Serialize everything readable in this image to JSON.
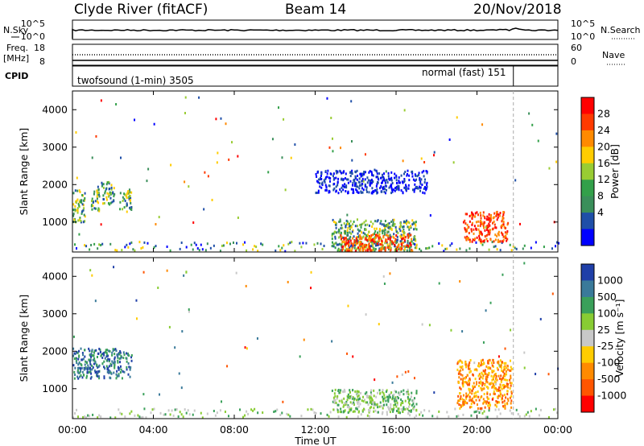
{
  "header": {
    "title": "Clyde River (fitACF)",
    "beam": "Beam 14",
    "date": "20/Nov/2018"
  },
  "strip": {
    "left_top_label": "N.Sky",
    "left_top_ticks": [
      "10^5",
      "10^0"
    ],
    "right_top_label": "N.Search",
    "right_top_ticks": [
      "10^5",
      "10^0"
    ],
    "freq_label": "Freq.",
    "freq_unit": "[MHz]",
    "freq_ticks": [
      "18",
      "8"
    ],
    "nave_label": "Nave",
    "nave_ticks": [
      "60",
      "0"
    ],
    "cpid_label": "CPID",
    "cpid_mode1": "twofsound (1-min) 3505",
    "cpid_mode2": "normal (fast) 151"
  },
  "chart_data": [
    {
      "type": "heatmap",
      "panel": "power",
      "ylabel": "Slant Range [km]",
      "yticks": [
        "4000",
        "3000",
        "2000",
        "1000"
      ],
      "ylim": [
        200,
        4500
      ],
      "xlim_hours": [
        0,
        24
      ],
      "colorbar_label": "Power [dB]",
      "colorbar_ticks": [
        "28",
        "24",
        "20",
        "16",
        "12",
        "8",
        "4"
      ],
      "colorbar_colors": [
        "#ff0000",
        "#ff3a00",
        "#ff8a00",
        "#ffcc00",
        "#99cc33",
        "#33a04a",
        "#3a8f5a",
        "#1f4fa8",
        "#0000ff"
      ],
      "scatter_regions": [
        {
          "x": [
            0.0,
            0.6
          ],
          "y": [
            1000,
            1900
          ],
          "level": "mid"
        },
        {
          "x": [
            0.9,
            1.3
          ],
          "y": [
            1300,
            2000
          ],
          "level": "mid"
        },
        {
          "x": [
            1.4,
            2.1
          ],
          "y": [
            1500,
            2100
          ],
          "level": "mid"
        },
        {
          "x": [
            2.3,
            2.9
          ],
          "y": [
            1300,
            1900
          ],
          "level": "mid"
        },
        {
          "x": [
            12.8,
            17.0
          ],
          "y": [
            250,
            1100
          ],
          "level": "mid"
        },
        {
          "x": [
            13.2,
            16.8
          ],
          "y": [
            250,
            700
          ],
          "level": "high"
        },
        {
          "x": [
            19.3,
            21.5
          ],
          "y": [
            500,
            1300
          ],
          "level": "high"
        },
        {
          "x": [
            12.0,
            17.5
          ],
          "y": [
            1800,
            2400
          ],
          "level": "low"
        }
      ]
    },
    {
      "type": "heatmap",
      "panel": "velocity",
      "ylabel": "Slant Range [km]",
      "yticks": [
        "4000",
        "3000",
        "2000",
        "1000"
      ],
      "ylim": [
        200,
        4500
      ],
      "xlim_hours": [
        0,
        24
      ],
      "colorbar_label": "Velocity [m s⁻¹]",
      "colorbar_ticks": [
        "1000",
        "500",
        "100",
        "25",
        "-25",
        "-100",
        "-500",
        "-1000"
      ],
      "colorbar_colors": [
        "#1f3fa8",
        "#3a7a9a",
        "#3aa05a",
        "#88cc33",
        "#c8c8c8",
        "#ffcc00",
        "#ff8a00",
        "#ff5500",
        "#ff0000"
      ],
      "scatter_regions": [
        {
          "x": [
            0.0,
            2.9
          ],
          "y": [
            1300,
            2100
          ],
          "level": "fast-toward"
        },
        {
          "x": [
            12.8,
            17.0
          ],
          "y": [
            400,
            1000
          ],
          "level": "slow"
        },
        {
          "x": [
            19.0,
            21.7
          ],
          "y": [
            500,
            1800
          ],
          "level": "away"
        }
      ]
    }
  ],
  "time_axis": {
    "ticks": [
      "00:00",
      "04:00",
      "08:00",
      "12:00",
      "16:00",
      "20:00",
      "00:00"
    ],
    "label": "Time UT"
  },
  "mode_change_hour": 21.8
}
